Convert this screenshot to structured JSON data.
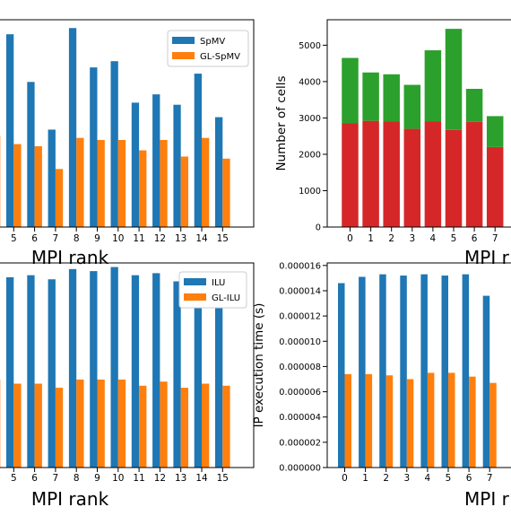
{
  "chart_data": [
    {
      "type": "bar",
      "panel": "top-left",
      "categories": [
        "",
        "5",
        "6",
        "7",
        "8",
        "9",
        "10",
        "11",
        "12",
        "13",
        "14",
        "15"
      ],
      "series": [
        {
          "name": "SpMV",
          "color": "#1f77b4",
          "values": [
            null,
            0.93,
            0.7,
            0.47,
            0.96,
            0.77,
            0.8,
            0.6,
            0.64,
            0.59,
            0.74,
            0.53
          ]
        },
        {
          "name": "GL-SpMV",
          "color": "#ff7f0e",
          "values": [
            0.44,
            0.4,
            0.39,
            0.28,
            0.43,
            0.42,
            0.42,
            0.37,
            0.42,
            0.34,
            0.43,
            0.33
          ]
        }
      ],
      "ylim": [
        0,
        1.0
      ],
      "xlabel": "MPI rank",
      "legend_position": "top-right"
    },
    {
      "type": "bar",
      "panel": "top-right",
      "stacked": true,
      "categories": [
        "0",
        "1",
        "2",
        "3",
        "4",
        "5",
        "6",
        "7"
      ],
      "series": [
        {
          "color": "#d62728",
          "values": [
            2850,
            2920,
            2900,
            2700,
            2910,
            2670,
            2890,
            2200
          ]
        },
        {
          "color": "#2ca02c",
          "values": [
            1800,
            1330,
            1300,
            1210,
            1950,
            2780,
            910,
            850
          ]
        }
      ],
      "ylim": [
        0,
        5700
      ],
      "yticks": [
        "0",
        "1000",
        "2000",
        "3000",
        "4000",
        "5000"
      ],
      "ylabel": "Number of cells",
      "xlabel": "MPI r"
    },
    {
      "type": "bar",
      "panel": "bottom-left",
      "categories": [
        "",
        "5",
        "6",
        "7",
        "8",
        "9",
        "10",
        "11",
        "12",
        "13",
        "14",
        "15"
      ],
      "series": [
        {
          "name": "ILU",
          "color": "#1f77b4",
          "values": [
            null,
            0.93,
            0.94,
            0.92,
            0.97,
            0.96,
            0.98,
            0.94,
            0.95,
            0.91,
            0.94,
            0.91
          ]
        },
        {
          "name": "GL-ILU",
          "color": "#ff7f0e",
          "values": [
            0.43,
            0.41,
            0.41,
            0.39,
            0.43,
            0.43,
            0.43,
            0.4,
            0.42,
            0.39,
            0.41,
            0.4
          ]
        }
      ],
      "ylim": [
        0,
        1.0
      ],
      "xlabel": "MPI rank",
      "legend_position": "top-right"
    },
    {
      "type": "bar",
      "panel": "bottom-right",
      "categories": [
        "0",
        "1",
        "2",
        "3",
        "4",
        "5",
        "6",
        "7"
      ],
      "series": [
        {
          "color": "#1f77b4",
          "values": [
            1.46e-05,
            1.51e-05,
            1.53e-05,
            1.52e-05,
            1.53e-05,
            1.52e-05,
            1.53e-05,
            1.36e-05
          ]
        },
        {
          "color": "#ff7f0e",
          "values": [
            7.4e-06,
            7.4e-06,
            7.3e-06,
            7e-06,
            7.5e-06,
            7.5e-06,
            7.2e-06,
            6.7e-06
          ]
        }
      ],
      "ylim": [
        0,
        1.62e-05
      ],
      "yticks": [
        "0.000000",
        "0.000002",
        "0.000004",
        "0.000006",
        "0.000008",
        "0.000010",
        "0.000012",
        "0.000014",
        "0.000016"
      ],
      "ylabel": "IP execution time (s)",
      "xlabel": "MPI r"
    }
  ]
}
